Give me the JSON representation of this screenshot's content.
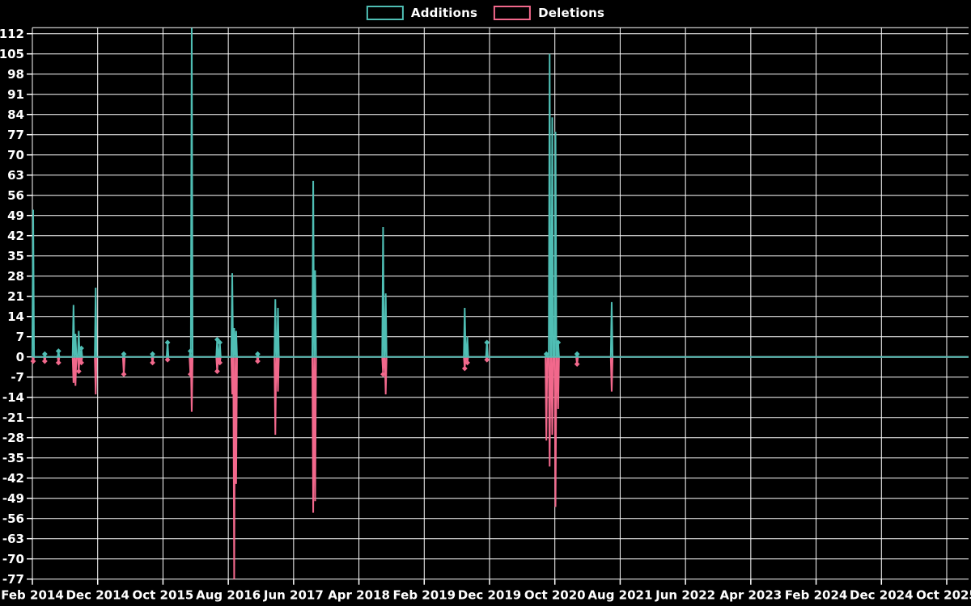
{
  "page": {
    "background_color": "#000000",
    "text_color": "#ffffff"
  },
  "chart_data": {
    "type": "line",
    "title": "",
    "description": "Weekly additions and deletions spike chart over a git repository history",
    "grid": {
      "on": true,
      "color": "#ffffff"
    },
    "legend": {
      "position": "top-center",
      "items": [
        {
          "label": "Additions",
          "color": "#4fbeb4"
        },
        {
          "label": "Deletions",
          "color": "#f2688c"
        }
      ]
    },
    "y_axis": {
      "min": -77,
      "max": 112,
      "tick_step": 7,
      "tick_labels": [
        112,
        105,
        98,
        91,
        84,
        77,
        70,
        63,
        56,
        49,
        42,
        35,
        28,
        21,
        14,
        7,
        0,
        -7,
        -14,
        -21,
        -28,
        -35,
        -42,
        -49,
        -56,
        -63,
        -70,
        -77
      ]
    },
    "x_axis": {
      "tick_labels": [
        "Feb 2014",
        "Dec 2014",
        "Oct 2015",
        "Aug 2016",
        "Jun 2017",
        "Apr 2018",
        "Feb 2019",
        "Dec 2019",
        "Oct 2020",
        "Aug 2021",
        "Jun 2022",
        "Apr 2023",
        "Feb 2024",
        "Dec 2024",
        "Oct 2025"
      ],
      "months_per_tick": 10,
      "total_months": 140
    },
    "series": [
      {
        "name": "Additions",
        "color": "#4fbeb4",
        "baseline": 0
      },
      {
        "name": "Deletions",
        "color": "#f2688c",
        "baseline": 0
      }
    ],
    "spikes": [
      {
        "month_offset": 0.12,
        "additions": 51,
        "deletions": -1.5
      },
      {
        "month_offset": 1.9,
        "additions": 1,
        "deletions": -1.5
      },
      {
        "month_offset": 4.0,
        "additions": 2,
        "deletions": -2
      },
      {
        "month_offset": 6.3,
        "additions": 18,
        "deletions": -9
      },
      {
        "month_offset": 6.6,
        "additions": 8,
        "deletions": -10
      },
      {
        "month_offset": 7.1,
        "additions": 9,
        "deletions": -5
      },
      {
        "month_offset": 7.5,
        "additions": 3,
        "deletions": -2
      },
      {
        "month_offset": 9.7,
        "additions": 24,
        "deletions": -13
      },
      {
        "month_offset": 14.0,
        "additions": 1,
        "deletions": -6
      },
      {
        "month_offset": 18.4,
        "additions": 1,
        "deletions": -2
      },
      {
        "month_offset": 20.7,
        "additions": 5,
        "deletions": -1
      },
      {
        "month_offset": 24.2,
        "additions": 2,
        "deletions": -6
      },
      {
        "month_offset": 24.4,
        "additions": 114,
        "deletions": -19
      },
      {
        "month_offset": 28.3,
        "additions": 6,
        "deletions": -5
      },
      {
        "month_offset": 28.7,
        "additions": 5,
        "deletions": -2
      },
      {
        "month_offset": 30.6,
        "additions": 29,
        "deletions": -13
      },
      {
        "month_offset": 30.9,
        "additions": 10,
        "deletions": -77
      },
      {
        "month_offset": 31.2,
        "additions": 9,
        "deletions": -44
      },
      {
        "month_offset": 34.5,
        "additions": 1,
        "deletions": -1.5
      },
      {
        "month_offset": 37.2,
        "additions": 20,
        "deletions": -27
      },
      {
        "month_offset": 37.6,
        "additions": 17,
        "deletions": -12
      },
      {
        "month_offset": 43.0,
        "additions": 61,
        "deletions": -54
      },
      {
        "month_offset": 43.3,
        "additions": 30,
        "deletions": -50
      },
      {
        "month_offset": 53.7,
        "additions": 45,
        "deletions": -6
      },
      {
        "month_offset": 54.1,
        "additions": 22,
        "deletions": -13
      },
      {
        "month_offset": 66.2,
        "additions": 17,
        "deletions": -4
      },
      {
        "month_offset": 66.6,
        "additions": 7,
        "deletions": -2
      },
      {
        "month_offset": 69.6,
        "additions": 5,
        "deletions": -1
      },
      {
        "month_offset": 78.7,
        "additions": 1,
        "deletions": -29
      },
      {
        "month_offset": 79.2,
        "additions": 105,
        "deletions": -38
      },
      {
        "month_offset": 79.6,
        "additions": 83,
        "deletions": -27
      },
      {
        "month_offset": 80.1,
        "additions": 78,
        "deletions": -52
      },
      {
        "month_offset": 80.5,
        "additions": 5,
        "deletions": -18
      },
      {
        "month_offset": 83.4,
        "additions": 1,
        "deletions": -2.5
      },
      {
        "month_offset": 88.7,
        "additions": 19,
        "deletions": -12
      }
    ]
  }
}
